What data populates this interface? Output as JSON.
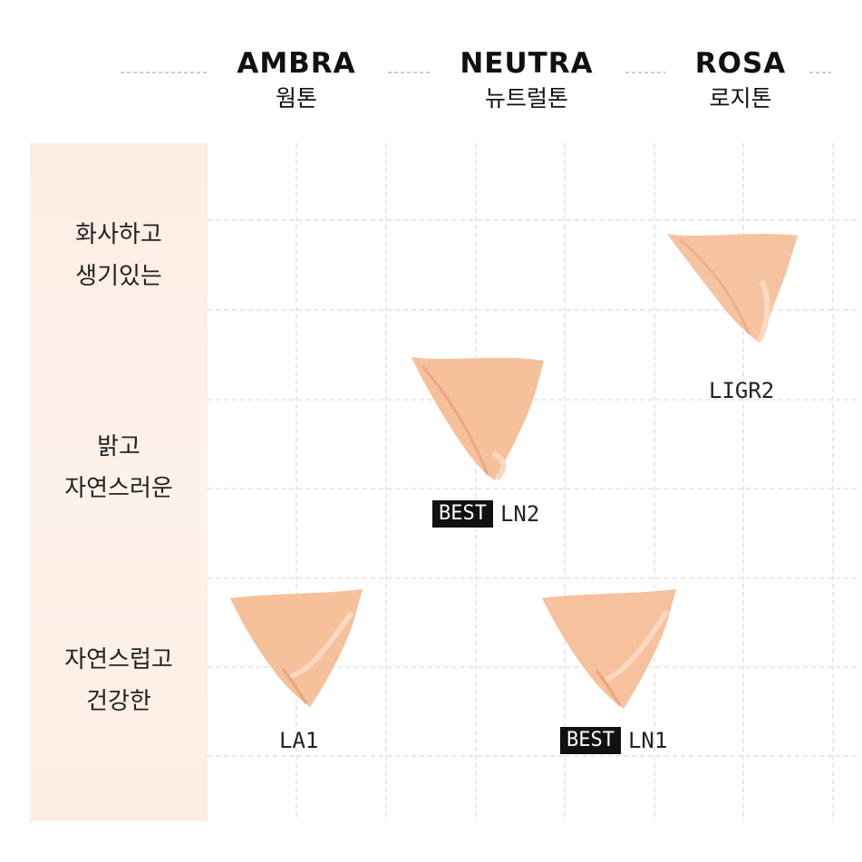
{
  "columns": [
    {
      "en": "AMBRA",
      "ko": "웜톤"
    },
    {
      "en": "NEUTRA",
      "ko": "뉴트럴톤"
    },
    {
      "en": "ROSA",
      "ko": "로지톤"
    }
  ],
  "rows": [
    {
      "line1": "화사하고",
      "line2": "생기있는"
    },
    {
      "line1": "밝고",
      "line2": "자연스러운"
    },
    {
      "line1": "자연스럽고",
      "line2": "건강한"
    }
  ],
  "badge": "BEST",
  "shades": [
    {
      "code": "LIGR2",
      "column": "ROSA",
      "row": 1,
      "best": false
    },
    {
      "code": "LN2",
      "column": "NEUTRA",
      "row": 2,
      "best": true
    },
    {
      "code": "LA1",
      "column": "AMBRA",
      "row": 3,
      "best": false
    },
    {
      "code": "LN1",
      "column": "NEUTRA",
      "row": 3,
      "best": true
    }
  ],
  "colors": {
    "swatch": "#f5c19b",
    "swatch_dark": "#e9a87f",
    "panel": "#fdeee4"
  }
}
